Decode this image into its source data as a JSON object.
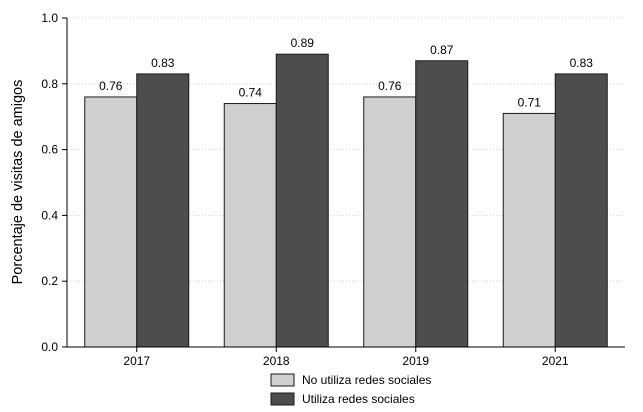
{
  "chart_data": {
    "type": "bar",
    "title": "",
    "xlabel": "",
    "ylabel": "Porcentaje de visitas de amigos",
    "categories": [
      "2017",
      "2018",
      "2019",
      "2021"
    ],
    "series": [
      {
        "name": "No utiliza redes sociales",
        "values": [
          0.76,
          0.74,
          0.76,
          0.71
        ],
        "labels": [
          "0.76",
          "0.74",
          "0.76",
          "0.71"
        ],
        "color": "#d0d0d0"
      },
      {
        "name": "Utiliza redes sociales",
        "values": [
          0.83,
          0.89,
          0.87,
          0.83
        ],
        "labels": [
          "0.83",
          "0.89",
          "0.87",
          "0.83"
        ],
        "color": "#4d4d4d"
      }
    ],
    "ylim": [
      0,
      1
    ],
    "yticks": [
      0,
      0.2,
      0.4,
      0.6,
      0.8,
      1
    ],
    "ytick_labels": [
      "0.0",
      "0.2",
      "0.4",
      "0.6",
      "0.8",
      "1.0"
    ],
    "grid": true,
    "legend_position": "bottom-center"
  }
}
